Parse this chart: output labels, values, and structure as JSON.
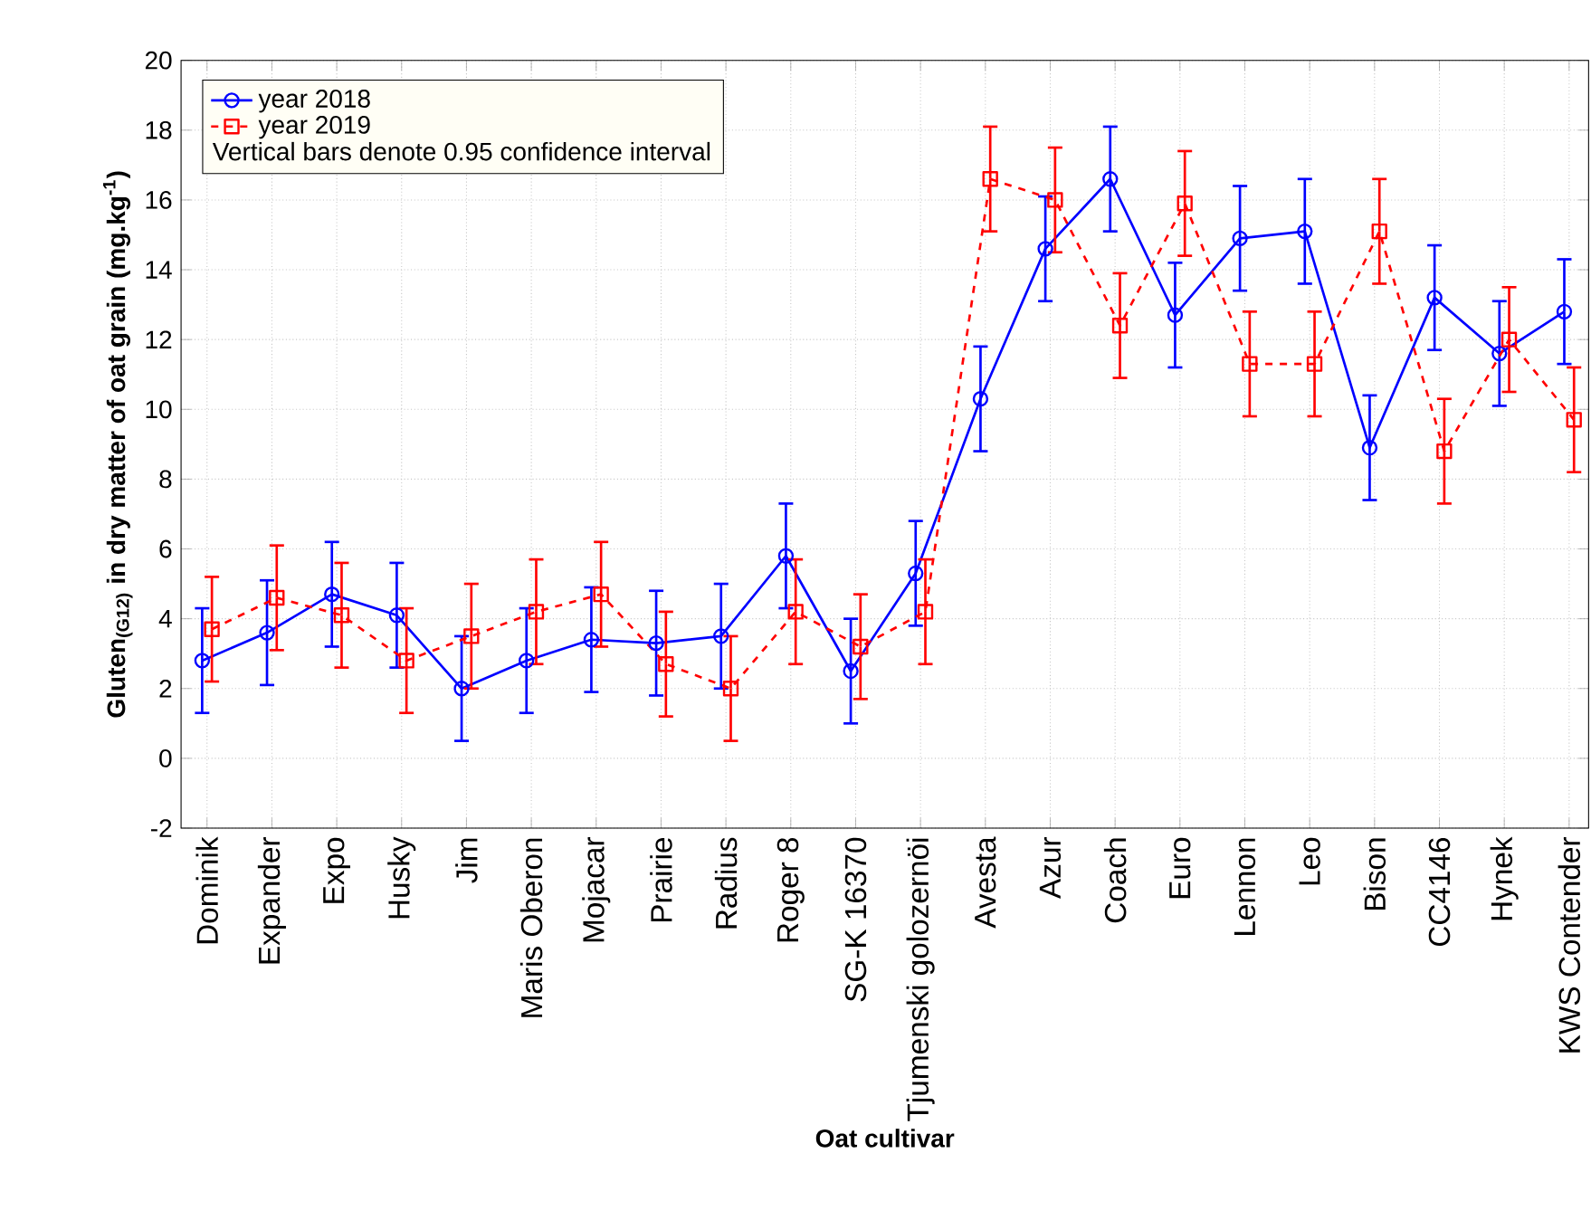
{
  "chart_data": {
    "type": "line",
    "xlabel": "Oat cultivar",
    "ylabel": "Gluten$_{(G12)}$ in dry matter of oat grain (mg.kg$^{-1}$)",
    "categories": [
      "Dominik",
      "Expander",
      "Expo",
      "Husky",
      "Jim",
      "Maris Oberon",
      "Mojacar",
      "Prairie",
      "Radius",
      "Roger 8",
      "SG-K 16370",
      "Tjumenski golozernöi",
      "Avesta",
      "Azur",
      "Coach",
      "Euro",
      "Lennon",
      "Leo",
      "Bison",
      "CC4146",
      "Hynek",
      "KWS Contender"
    ],
    "series": [
      {
        "name": "year 2018",
        "color": "#0000ff",
        "marker": "circle",
        "line_style": "solid",
        "values": [
          2.8,
          3.6,
          4.7,
          4.1,
          2.0,
          2.8,
          3.4,
          3.3,
          3.5,
          5.8,
          2.5,
          5.3,
          10.3,
          14.6,
          16.6,
          12.7,
          14.9,
          15.1,
          8.9,
          13.2,
          11.6,
          12.8
        ],
        "errors": [
          1.5,
          1.5,
          1.5,
          1.5,
          1.5,
          1.5,
          1.5,
          1.5,
          1.5,
          1.5,
          1.5,
          1.5,
          1.5,
          1.5,
          1.5,
          1.5,
          1.5,
          1.5,
          1.5,
          1.5,
          1.5,
          1.5
        ]
      },
      {
        "name": "year 2019",
        "color": "#ff0000",
        "marker": "square",
        "line_style": "dashed",
        "values": [
          3.7,
          4.6,
          4.1,
          2.8,
          3.5,
          4.2,
          4.7,
          2.7,
          2.0,
          4.2,
          3.2,
          4.2,
          16.6,
          16.0,
          12.4,
          15.9,
          11.3,
          11.3,
          15.1,
          8.8,
          12.0,
          9.7
        ],
        "errors": [
          1.5,
          1.5,
          1.5,
          1.5,
          1.5,
          1.5,
          1.5,
          1.5,
          1.5,
          1.5,
          1.5,
          1.5,
          1.5,
          1.5,
          1.5,
          1.5,
          1.5,
          1.5,
          1.5,
          1.5,
          1.5,
          1.5
        ]
      }
    ],
    "ylim": [
      -2,
      20
    ],
    "yticks": [
      -2,
      0,
      2,
      4,
      6,
      8,
      10,
      12,
      14,
      16,
      18,
      20
    ],
    "grid": true,
    "legend": "top left",
    "annotations": [
      "Vertical bars denote 0.95 confidence interval"
    ]
  }
}
